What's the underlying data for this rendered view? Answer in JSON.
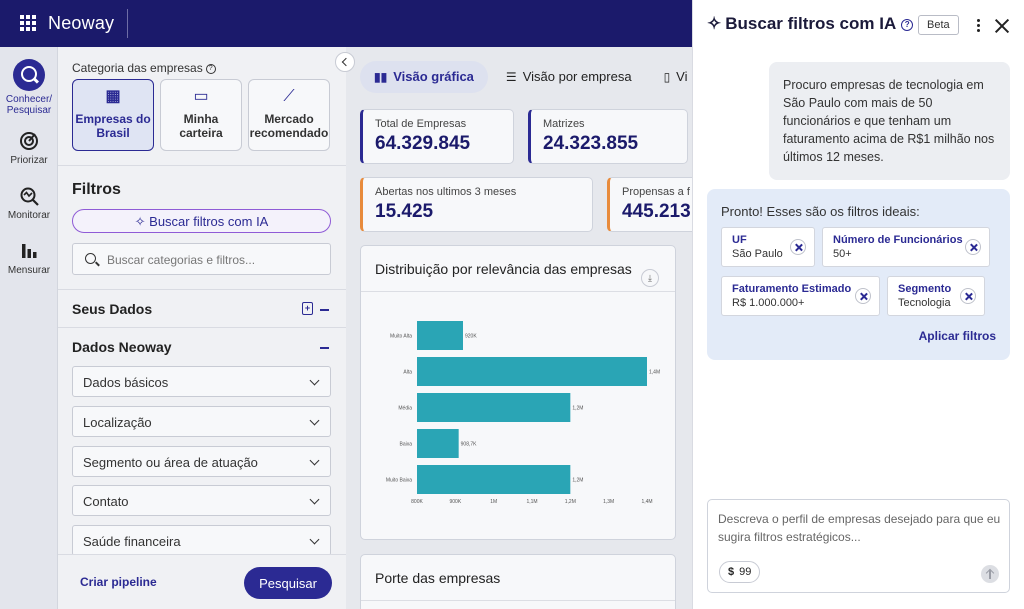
{
  "topbar": {
    "logo": "Neoway"
  },
  "rail": {
    "items": [
      {
        "label": "Conhecer/ Pesquisar",
        "icon": "search-icon"
      },
      {
        "label": "Priorizar",
        "icon": "target-icon"
      },
      {
        "label": "Monitorar",
        "icon": "monitor-icon"
      },
      {
        "label": "Mensurar",
        "icon": "bar-chart-icon"
      }
    ]
  },
  "filters": {
    "category_title": "Categoria das empresas",
    "categories": [
      {
        "label": "Empresas do Brasil",
        "icon": "building-icon"
      },
      {
        "label": "Minha carteira",
        "icon": "briefcase-icon"
      },
      {
        "label": "Mercado recomendado",
        "icon": "trend-icon"
      }
    ],
    "title": "Filtros",
    "ai_button": "Buscar filtros com IA",
    "search_placeholder": "Buscar categorias e filtros...",
    "groups": {
      "seus_dados": "Seus Dados",
      "dados_neoway": "Dados Neoway"
    },
    "dropdowns": [
      "Dados básicos",
      "Localização",
      "Segmento ou área de atuação",
      "Contato",
      "Saúde financeira"
    ],
    "pipeline": "Criar pipeline",
    "search_button": "Pesquisar"
  },
  "main": {
    "tabs": [
      "Visão gráfica",
      "Visão por empresa",
      "Vi"
    ],
    "kpis": [
      {
        "label": "Total de Empresas",
        "value": "64.329.845"
      },
      {
        "label": "Matrizes",
        "value": "24.323.855"
      },
      {
        "label": "Abertas nos ultimos 3 meses",
        "value": "15.425"
      },
      {
        "label": "Propensas a f",
        "value": "445.213"
      }
    ],
    "chart_card_title": "Distribuição por relevância das empresas",
    "porte_title": "Porte das empresas"
  },
  "chart_data": {
    "type": "bar",
    "orientation": "horizontal",
    "categories": [
      "Muito Alta",
      "Alta",
      "Média",
      "Baixa",
      "Muito Baixa"
    ],
    "values": [
      920,
      1400,
      1200,
      908.7,
      1200
    ],
    "data_labels": [
      "920K",
      "1,4M",
      "1,2M",
      "908,7K",
      "1,2M"
    ],
    "x_ticks": [
      "800K",
      "900K",
      "1M",
      "1,1M",
      "1,2M",
      "1,3M",
      "1,4M"
    ],
    "xlim": [
      800,
      1400
    ],
    "bar_color": "#2aa5b5"
  },
  "ai_panel": {
    "title": "Buscar filtros com IA",
    "beta": "Beta",
    "user_message": "Procuro empresas de tecnologia em São Paulo com mais de 50 funcionários e que tenham um faturamento acima de R$1 milhão nos últimos 12 meses.",
    "response_title": "Pronto! Esses são os filtros ideais:",
    "chips": [
      {
        "label": "UF",
        "value": "São Paulo"
      },
      {
        "label": "Número de Funcionários",
        "value": "50+"
      },
      {
        "label": "Faturamento Estimado",
        "value": "R$ 1.000.000+"
      },
      {
        "label": "Segmento",
        "value": "Tecnologia"
      }
    ],
    "apply": "Aplicar filtros",
    "composer_placeholder": "Descreva o perfil de empresas desejado para que eu sugira filtros estratégicos...",
    "credits_symbol": "$",
    "credits": "99"
  },
  "colors": {
    "primary": "#2b2a93",
    "topbar": "#1b1a6b",
    "accent_orange": "#e88b3c"
  }
}
